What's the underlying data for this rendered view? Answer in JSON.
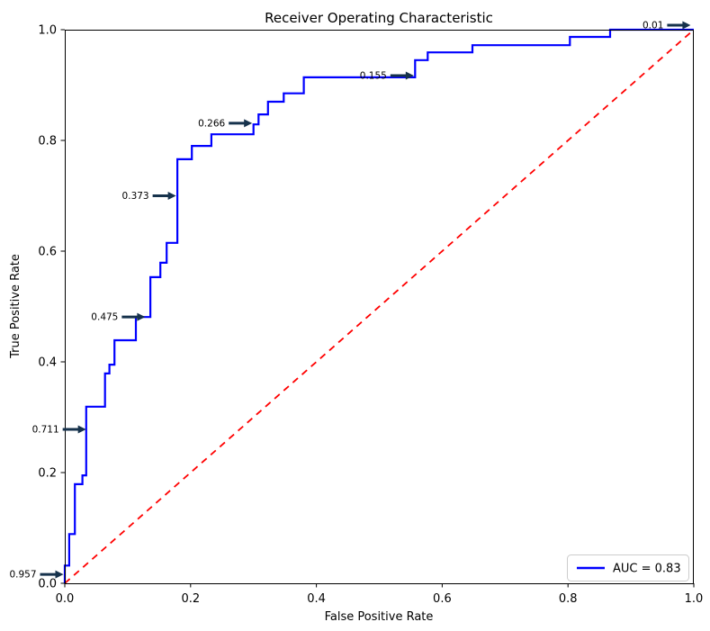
{
  "chart_data": {
    "type": "line",
    "title": "Receiver Operating Characteristic",
    "xlabel": "False Positive Rate",
    "ylabel": "True Positive Rate",
    "xlim": [
      0.0,
      1.0
    ],
    "ylim": [
      0.0,
      1.0
    ],
    "grid": false,
    "auc": 0.83,
    "legend": {
      "position": "lower right",
      "entries": [
        {
          "label": "AUC = 0.83",
          "color": "#0000ff"
        }
      ]
    },
    "x_ticks": {
      "values": [
        0.0,
        0.2,
        0.4,
        0.6,
        0.8,
        1.0
      ],
      "labels": [
        "0.0",
        "0.2",
        "0.4",
        "0.6",
        "0.8",
        "1.0"
      ]
    },
    "y_ticks": {
      "values": [
        0.0,
        0.2,
        0.4,
        0.6,
        0.8,
        1.0
      ],
      "labels": [
        "0.0",
        "0.2",
        "0.4",
        "0.6",
        "0.8",
        "1.0"
      ]
    },
    "series": [
      {
        "name": "ROC curve",
        "style": "solid",
        "color": "#0000ff",
        "fpr": [
          0.0,
          0.0,
          0.0,
          0.007,
          0.007,
          0.016,
          0.016,
          0.028,
          0.028,
          0.034,
          0.034,
          0.064,
          0.064,
          0.071,
          0.071,
          0.079,
          0.079,
          0.113,
          0.113,
          0.136,
          0.136,
          0.152,
          0.152,
          0.162,
          0.162,
          0.179,
          0.179,
          0.202,
          0.202,
          0.233,
          0.233,
          0.3,
          0.3,
          0.308,
          0.308,
          0.323,
          0.323,
          0.348,
          0.348,
          0.38,
          0.38,
          0.557,
          0.557,
          0.577,
          0.577,
          0.648,
          0.648,
          0.803,
          0.803,
          0.867,
          0.867,
          1.0
        ],
        "tpr": [
          0.0,
          0.016,
          0.032,
          0.032,
          0.089,
          0.089,
          0.179,
          0.179,
          0.195,
          0.195,
          0.319,
          0.319,
          0.379,
          0.379,
          0.395,
          0.395,
          0.439,
          0.439,
          0.481,
          0.481,
          0.553,
          0.553,
          0.579,
          0.579,
          0.615,
          0.615,
          0.766,
          0.766,
          0.79,
          0.79,
          0.811,
          0.811,
          0.829,
          0.829,
          0.847,
          0.847,
          0.87,
          0.87,
          0.885,
          0.885,
          0.914,
          0.914,
          0.945,
          0.945,
          0.959,
          0.959,
          0.972,
          0.972,
          0.987,
          0.987,
          1.0,
          1.0
        ]
      },
      {
        "name": "chance diagonal",
        "style": "dashed",
        "color": "#ff0000",
        "x": [
          0.0,
          1.0
        ],
        "y": [
          0.0,
          1.0
        ]
      }
    ],
    "threshold_annotations": [
      {
        "label": "0.957",
        "x": 0.0,
        "y": 0.016,
        "dy": 0
      },
      {
        "label": "0.711",
        "x": 0.036,
        "y": 0.278,
        "dy": 0
      },
      {
        "label": "0.475",
        "x": 0.13,
        "y": 0.481,
        "dy": 0
      },
      {
        "label": "0.373",
        "x": 0.179,
        "y": 0.7,
        "dy": 0
      },
      {
        "label": "0.266",
        "x": 0.3,
        "y": 0.831,
        "dy": 0
      },
      {
        "label": "0.155",
        "x": 0.557,
        "y": 0.917,
        "dy": 0
      },
      {
        "label": "0.01",
        "x": 0.997,
        "y": 1.0,
        "dy": -5
      }
    ],
    "colors": {
      "curve": "#0000ff",
      "diagonal": "#ff0000",
      "annotation_text": "#008000",
      "annotation_arrow": "#16324c",
      "axis": "#000000",
      "legend_border": "#cccccc"
    }
  }
}
